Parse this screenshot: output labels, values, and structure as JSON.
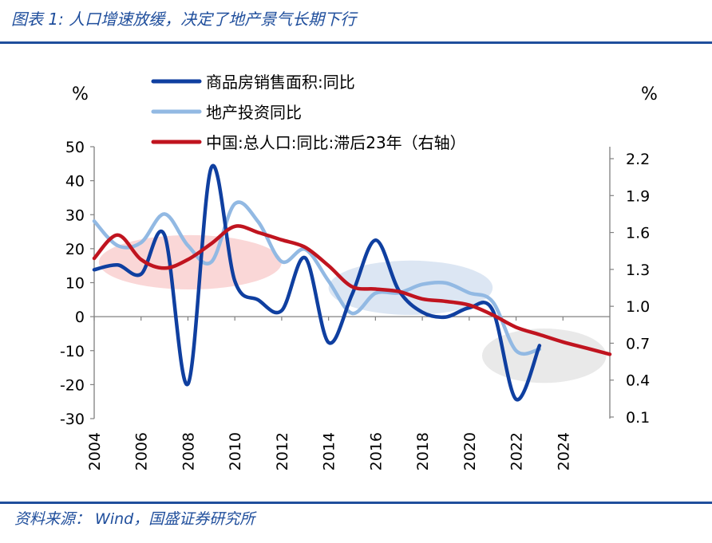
{
  "header": {
    "title": "图表 1:  人口增速放缓，决定了地产景气长期下行"
  },
  "footer": {
    "source": "资料来源： Wind，国盛证券研究所"
  },
  "chart_data": {
    "type": "line",
    "left_unit": "%",
    "right_unit": "%",
    "x_ticks": [
      "2004",
      "2006",
      "2008",
      "2010",
      "2012",
      "2014",
      "2016",
      "2018",
      "2020",
      "2022",
      "2024"
    ],
    "left_ticks": [
      "50",
      "40",
      "30",
      "20",
      "10",
      "0",
      "-10",
      "-20",
      "-30"
    ],
    "right_ticks": [
      "2.2",
      "1.9",
      "1.6",
      "1.3",
      "1.0",
      "0.7",
      "0.4",
      "0.1"
    ],
    "ylim_left": [
      -30,
      50
    ],
    "ylim_right": [
      0.1,
      2.2
    ],
    "xlim": [
      2004,
      2026
    ],
    "series": [
      {
        "name": "商品房销售面积:同比",
        "axis": "left",
        "color": "#0f3fa0",
        "x": [
          2004,
          2005,
          2006,
          2007,
          2008,
          2009,
          2010,
          2011,
          2012,
          2013,
          2014,
          2015,
          2016,
          2017,
          2018,
          2019,
          2020,
          2021,
          2022,
          2023
        ],
        "values": [
          13.8,
          15.2,
          12.5,
          24.0,
          -19.8,
          43.9,
          10.5,
          4.9,
          1.8,
          17.3,
          -7.6,
          6.5,
          22.5,
          7.7,
          1.3,
          -0.1,
          2.6,
          1.9,
          -24.3,
          -8.5
        ]
      },
      {
        "name": "地产投资同比",
        "axis": "left",
        "color": "#92b9e3",
        "x": [
          2004,
          2005,
          2006,
          2007,
          2008,
          2009,
          2010,
          2011,
          2012,
          2013,
          2014,
          2015,
          2016,
          2017,
          2018,
          2019,
          2020,
          2021,
          2022,
          2023
        ],
        "values": [
          28.1,
          20.9,
          21.8,
          30.2,
          20.9,
          16.1,
          33.2,
          27.9,
          16.2,
          19.8,
          10.5,
          1.0,
          6.9,
          7.0,
          9.5,
          9.9,
          7.0,
          4.4,
          -10.0,
          -9.6
        ]
      },
      {
        "name": "中国:总人口:同比:滞后23年（右轴）",
        "axis": "right",
        "color": "#c0141f",
        "x": [
          2004,
          2005,
          2006,
          2007,
          2008,
          2009,
          2010,
          2011,
          2012,
          2013,
          2014,
          2015,
          2016,
          2017,
          2018,
          2019,
          2020,
          2021,
          2022,
          2023,
          2024,
          2025,
          2026
        ],
        "values": [
          1.39,
          1.58,
          1.38,
          1.31,
          1.38,
          1.51,
          1.65,
          1.6,
          1.54,
          1.48,
          1.33,
          1.16,
          1.14,
          1.12,
          1.06,
          1.04,
          1.01,
          0.93,
          0.83,
          0.77,
          0.71,
          0.66,
          0.61
        ]
      }
    ],
    "highlights": [
      {
        "shape": "ellipse",
        "color": "#f9d0d0",
        "cx": 2008.1,
        "cy": 16,
        "rx": 3.9,
        "ry": 8
      },
      {
        "shape": "ellipse",
        "color": "#d6e2f1",
        "cx": 2017.5,
        "cy": 8.5,
        "rx": 3.5,
        "ry": 8
      },
      {
        "shape": "ellipse",
        "color": "#e5e5e5",
        "cx": 2023.2,
        "cy": -11.5,
        "rx": 2.65,
        "ry": 8
      }
    ]
  }
}
